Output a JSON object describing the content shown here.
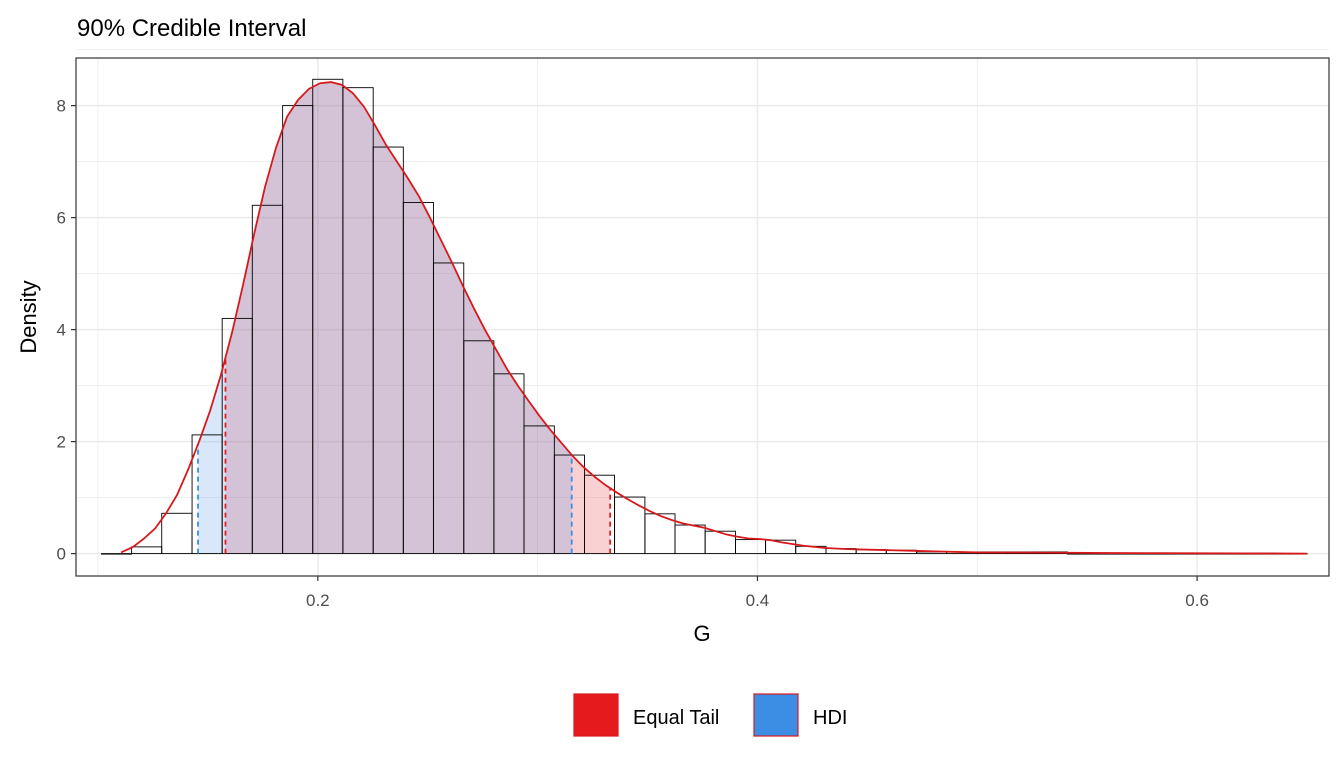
{
  "chart_data": {
    "type": "histogram with density curve and credible intervals",
    "title": "90% Credible Interval",
    "xlabel": "G",
    "ylabel": "Density",
    "xlim": [
      0.09,
      0.66
    ],
    "ylim": [
      -0.4,
      8.85
    ],
    "x_ticks": [
      {
        "value": 0.2,
        "label": "0.2"
      },
      {
        "value": 0.4,
        "label": "0.4"
      },
      {
        "value": 0.6,
        "label": "0.6"
      }
    ],
    "y_ticks": [
      {
        "value": 0,
        "label": "0"
      },
      {
        "value": 2,
        "label": "2"
      },
      {
        "value": 4,
        "label": "4"
      },
      {
        "value": 6,
        "label": "6"
      },
      {
        "value": 8,
        "label": "8"
      }
    ],
    "grid": true,
    "bin_width": 0.01373,
    "histogram": [
      {
        "x0": 0.1016,
        "x1": 0.1153,
        "density": 0.0
      },
      {
        "x0": 0.1153,
        "x1": 0.129,
        "density": 0.12
      },
      {
        "x0": 0.129,
        "x1": 0.1428,
        "density": 0.72
      },
      {
        "x0": 0.1428,
        "x1": 0.1565,
        "density": 2.12
      },
      {
        "x0": 0.1565,
        "x1": 0.1702,
        "density": 4.2
      },
      {
        "x0": 0.1702,
        "x1": 0.184,
        "density": 6.22
      },
      {
        "x0": 0.184,
        "x1": 0.1977,
        "density": 8.0
      },
      {
        "x0": 0.1977,
        "x1": 0.2114,
        "density": 8.47
      },
      {
        "x0": 0.2114,
        "x1": 0.2252,
        "density": 8.32
      },
      {
        "x0": 0.2252,
        "x1": 0.2389,
        "density": 7.26
      },
      {
        "x0": 0.2389,
        "x1": 0.2526,
        "density": 6.27
      },
      {
        "x0": 0.2526,
        "x1": 0.2664,
        "density": 5.19
      },
      {
        "x0": 0.2664,
        "x1": 0.2801,
        "density": 3.8
      },
      {
        "x0": 0.2801,
        "x1": 0.2938,
        "density": 3.21
      },
      {
        "x0": 0.2938,
        "x1": 0.3076,
        "density": 2.28
      },
      {
        "x0": 0.3076,
        "x1": 0.3213,
        "density": 1.76
      },
      {
        "x0": 0.3213,
        "x1": 0.335,
        "density": 1.4
      },
      {
        "x0": 0.335,
        "x1": 0.3488,
        "density": 1.01
      },
      {
        "x0": 0.3488,
        "x1": 0.3625,
        "density": 0.71
      },
      {
        "x0": 0.3625,
        "x1": 0.3762,
        "density": 0.51
      },
      {
        "x0": 0.3762,
        "x1": 0.39,
        "density": 0.4
      },
      {
        "x0": 0.39,
        "x1": 0.4037,
        "density": 0.25
      },
      {
        "x0": 0.4037,
        "x1": 0.4174,
        "density": 0.24
      },
      {
        "x0": 0.4174,
        "x1": 0.4312,
        "density": 0.13
      },
      {
        "x0": 0.4312,
        "x1": 0.4449,
        "density": 0.09
      },
      {
        "x0": 0.4449,
        "x1": 0.4586,
        "density": 0.07
      },
      {
        "x0": 0.4586,
        "x1": 0.4724,
        "density": 0.06
      },
      {
        "x0": 0.4724,
        "x1": 0.4861,
        "density": 0.03
      },
      {
        "x0": 0.4861,
        "x1": 0.4998,
        "density": 0.03
      },
      {
        "x0": 0.4998,
        "x1": 0.5136,
        "density": 0.03
      },
      {
        "x0": 0.5136,
        "x1": 0.5273,
        "density": 0.03
      },
      {
        "x0": 0.5273,
        "x1": 0.541,
        "density": 0.03
      },
      {
        "x0": 0.541,
        "x1": 0.65,
        "density": 0.0
      }
    ],
    "density_curve": {
      "x": [
        0.1105,
        0.116,
        0.121,
        0.126,
        0.131,
        0.136,
        0.141,
        0.146,
        0.151,
        0.156,
        0.161,
        0.166,
        0.171,
        0.176,
        0.181,
        0.186,
        0.191,
        0.196,
        0.201,
        0.206,
        0.211,
        0.216,
        0.221,
        0.226,
        0.231,
        0.236,
        0.241,
        0.246,
        0.251,
        0.256,
        0.261,
        0.266,
        0.271,
        0.276,
        0.281,
        0.286,
        0.291,
        0.296,
        0.301,
        0.306,
        0.311,
        0.316,
        0.321,
        0.326,
        0.331,
        0.336,
        0.341,
        0.346,
        0.351,
        0.356,
        0.361,
        0.366,
        0.371,
        0.376,
        0.381,
        0.386,
        0.391,
        0.396,
        0.401,
        0.406,
        0.411,
        0.421,
        0.431,
        0.441,
        0.451,
        0.461,
        0.471,
        0.481,
        0.491,
        0.501,
        0.521,
        0.541,
        0.561,
        0.581,
        0.601,
        0.621,
        0.641,
        0.65
      ],
      "y": [
        0.02,
        0.12,
        0.27,
        0.45,
        0.72,
        1.05,
        1.5,
        2.0,
        2.55,
        3.2,
        3.95,
        4.8,
        5.7,
        6.55,
        7.25,
        7.8,
        8.1,
        8.3,
        8.4,
        8.42,
        8.37,
        8.22,
        7.98,
        7.65,
        7.3,
        7.0,
        6.7,
        6.38,
        6.0,
        5.6,
        5.2,
        4.78,
        4.38,
        4.0,
        3.65,
        3.3,
        3.0,
        2.72,
        2.45,
        2.2,
        1.97,
        1.74,
        1.54,
        1.37,
        1.22,
        1.09,
        0.97,
        0.86,
        0.76,
        0.67,
        0.6,
        0.54,
        0.5,
        0.46,
        0.4,
        0.34,
        0.3,
        0.27,
        0.26,
        0.24,
        0.2,
        0.14,
        0.1,
        0.08,
        0.07,
        0.06,
        0.05,
        0.04,
        0.03,
        0.02,
        0.02,
        0.015,
        0.01,
        0.008,
        0.005,
        0.004,
        0.002,
        0.0
      ]
    },
    "intervals": [
      {
        "name": "Equal Tail",
        "lower": 0.158,
        "upper": 0.333,
        "color": "#e41a1c"
      },
      {
        "name": "HDI",
        "lower": 0.1455,
        "upper": 0.3155,
        "color": "#3b8ee4"
      }
    ],
    "legend": {
      "placement": "bottom",
      "entries": [
        {
          "label": "Equal Tail",
          "color": "#e41a1c"
        },
        {
          "label": "HDI",
          "color": "#3b8ee4"
        }
      ]
    },
    "colors": {
      "curve": "#d7191c",
      "equal_tail_fill": "#e41a1c",
      "hdi_fill": "#3b8ee4",
      "overlap_fill": "#d8bfd3",
      "grid": "#ebebeb",
      "panel_border": "#333333"
    }
  }
}
